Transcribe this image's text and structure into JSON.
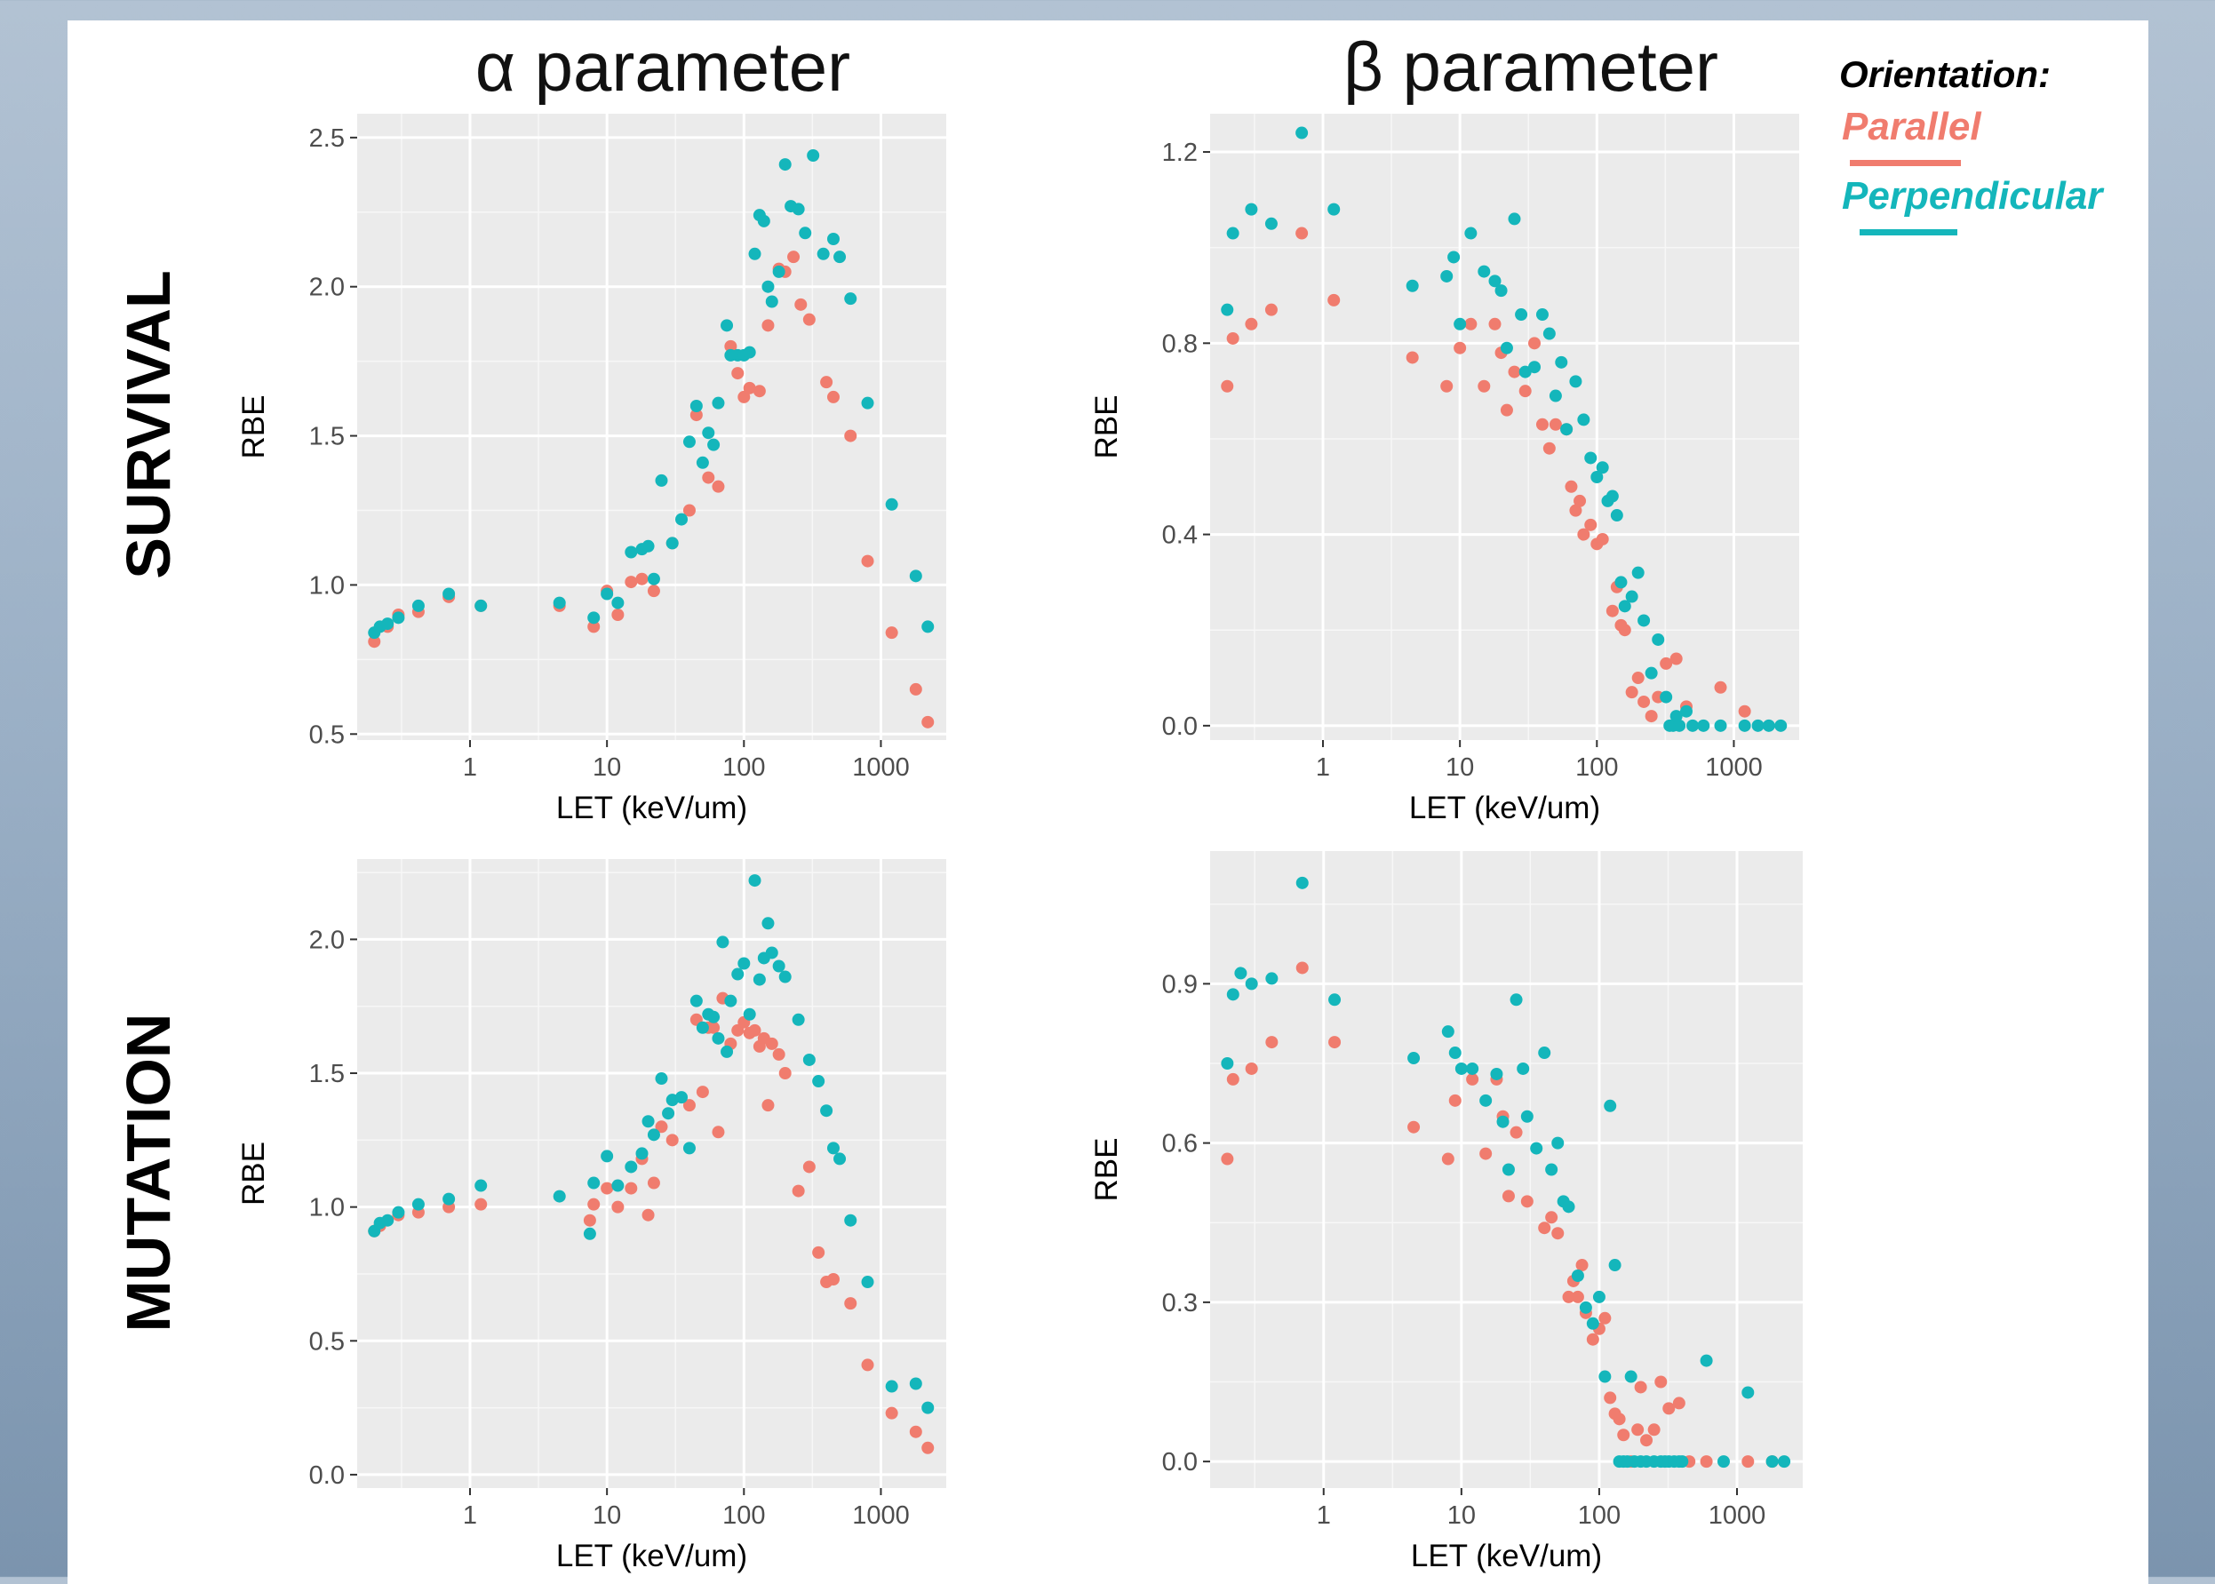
{
  "titles": {
    "alpha": "α parameter",
    "beta": "β parameter"
  },
  "rows": {
    "survival": "SURVIVAL",
    "mutation": "MUTATION"
  },
  "legend": {
    "title": "Orientation:",
    "items": [
      {
        "label": "Parallel",
        "color": "#F07C6E"
      },
      {
        "label": "Perpendicular",
        "color": "#14B6BB"
      }
    ]
  },
  "chart_data": [
    {
      "type": "scatter",
      "row": "SURVIVAL",
      "column": "α parameter",
      "xlabel": "LET (keV/um)",
      "ylabel": "RBE",
      "xscale": "log",
      "xlim": [
        0.15,
        3000
      ],
      "ylim": [
        0.48,
        2.58
      ],
      "xticks": [
        "1",
        "10",
        "100",
        "1000"
      ],
      "yticks": [
        "0.5",
        "1.0",
        "1.5",
        "2.0",
        "2.5"
      ],
      "grid": true,
      "series": [
        {
          "name": "Parallel",
          "x": [
            0.2,
            0.25,
            0.3,
            0.42,
            0.7,
            1.2,
            4.5,
            8,
            10,
            12,
            15,
            18,
            22,
            30,
            40,
            45,
            55,
            65,
            80,
            90,
            100,
            110,
            130,
            150,
            180,
            200,
            230,
            260,
            300,
            400,
            450,
            600,
            800,
            1200,
            1800,
            2200
          ],
          "y": [
            0.81,
            0.86,
            0.9,
            0.91,
            0.96,
            0.93,
            0.93,
            0.86,
            0.98,
            0.9,
            1.01,
            1.02,
            0.98,
            1.14,
            1.25,
            1.57,
            1.36,
            1.33,
            1.8,
            1.71,
            1.63,
            1.66,
            1.65,
            1.87,
            2.06,
            2.05,
            2.1,
            1.94,
            1.89,
            1.68,
            1.63,
            1.5,
            1.08,
            0.84,
            0.65,
            0.54
          ]
        },
        {
          "name": "Perpendicular",
          "x": [
            0.2,
            0.22,
            0.25,
            0.3,
            0.42,
            0.7,
            1.2,
            4.5,
            8,
            10,
            12,
            15,
            18,
            20,
            22,
            25,
            30,
            35,
            40,
            45,
            50,
            55,
            60,
            65,
            75,
            80,
            90,
            100,
            110,
            120,
            130,
            140,
            150,
            160,
            180,
            200,
            220,
            250,
            280,
            320,
            380,
            450,
            500,
            600,
            800,
            1200,
            1800,
            2200
          ],
          "y": [
            0.84,
            0.86,
            0.87,
            0.89,
            0.93,
            0.97,
            0.93,
            0.94,
            0.89,
            0.97,
            0.94,
            1.11,
            1.12,
            1.13,
            1.02,
            1.35,
            1.14,
            1.22,
            1.48,
            1.6,
            1.41,
            1.51,
            1.47,
            1.61,
            1.87,
            1.77,
            1.77,
            1.77,
            1.78,
            2.11,
            2.24,
            2.22,
            2.0,
            1.95,
            2.05,
            2.41,
            2.27,
            2.26,
            2.18,
            2.44,
            2.11,
            2.16,
            2.1,
            1.96,
            1.61,
            1.27,
            1.03,
            0.86
          ]
        }
      ]
    },
    {
      "type": "scatter",
      "row": "SURVIVAL",
      "column": "β parameter",
      "xlabel": "LET (keV/um)",
      "ylabel": "RBE",
      "xscale": "log",
      "xlim": [
        0.15,
        3000
      ],
      "ylim": [
        -0.03,
        1.28
      ],
      "xticks": [
        "1",
        "10",
        "100",
        "1000"
      ],
      "yticks": [
        "0.0",
        "0.4",
        "0.8",
        "1.2"
      ],
      "grid": true,
      "series": [
        {
          "name": "Parallel",
          "x": [
            0.2,
            0.22,
            0.3,
            0.42,
            0.7,
            1.2,
            4.5,
            8,
            10,
            12,
            15,
            18,
            20,
            22,
            25,
            30,
            35,
            40,
            45,
            50,
            60,
            65,
            70,
            75,
            80,
            90,
            100,
            110,
            130,
            140,
            150,
            160,
            180,
            200,
            220,
            250,
            280,
            320,
            380,
            450,
            800,
            1200
          ],
          "y": [
            0.71,
            0.81,
            0.84,
            0.87,
            1.03,
            0.89,
            0.77,
            0.71,
            0.79,
            0.84,
            0.71,
            0.84,
            0.78,
            0.66,
            0.74,
            0.7,
            0.8,
            0.63,
            0.58,
            0.63,
            0.62,
            0.5,
            0.45,
            0.47,
            0.4,
            0.42,
            0.38,
            0.39,
            0.24,
            0.29,
            0.21,
            0.2,
            0.07,
            0.1,
            0.05,
            0.02,
            0.06,
            0.13,
            0.14,
            0.04,
            0.08,
            0.03
          ]
        },
        {
          "name": "Perpendicular",
          "x": [
            0.2,
            0.22,
            0.3,
            0.42,
            0.7,
            1.2,
            4.5,
            8,
            9,
            10,
            12,
            15,
            18,
            20,
            22,
            25,
            28,
            30,
            35,
            40,
            45,
            50,
            55,
            60,
            70,
            80,
            90,
            100,
            110,
            120,
            130,
            140,
            150,
            160,
            180,
            200,
            220,
            250,
            280,
            320,
            340,
            360,
            380,
            400,
            450,
            500,
            600,
            800,
            1200,
            1500,
            1800,
            2200
          ],
          "y": [
            0.87,
            1.03,
            1.08,
            1.05,
            1.24,
            1.08,
            0.92,
            0.94,
            0.98,
            0.84,
            1.03,
            0.95,
            0.93,
            0.91,
            0.79,
            1.06,
            0.86,
            0.74,
            0.75,
            0.86,
            0.82,
            0.69,
            0.76,
            0.62,
            0.72,
            0.64,
            0.56,
            0.52,
            0.54,
            0.47,
            0.48,
            0.44,
            0.3,
            0.25,
            0.27,
            0.32,
            0.22,
            0.11,
            0.18,
            0.06,
            0.0,
            0.0,
            0.02,
            0.0,
            0.03,
            0.0,
            0.0,
            0.0,
            0.0,
            0.0,
            0.0,
            0.0
          ]
        }
      ]
    },
    {
      "type": "scatter",
      "row": "MUTATION",
      "column": "α parameter",
      "xlabel": "LET (keV/um)",
      "ylabel": "RBE",
      "xscale": "log",
      "xlim": [
        0.15,
        3000
      ],
      "ylim": [
        -0.05,
        2.3
      ],
      "xticks": [
        "1",
        "10",
        "100",
        "1000"
      ],
      "yticks": [
        "0.0",
        "0.5",
        "1.0",
        "1.5",
        "2.0"
      ],
      "grid": true,
      "series": [
        {
          "name": "Parallel",
          "x": [
            0.2,
            0.22,
            0.3,
            0.42,
            0.7,
            1.2,
            7.5,
            8,
            10,
            12,
            15,
            18,
            20,
            22,
            25,
            30,
            40,
            45,
            50,
            55,
            60,
            65,
            70,
            80,
            90,
            100,
            110,
            120,
            130,
            140,
            150,
            160,
            180,
            200,
            250,
            300,
            350,
            400,
            450,
            600,
            800,
            1200,
            1800,
            2200
          ],
          "y": [
            0.91,
            0.93,
            0.97,
            0.98,
            1.0,
            1.01,
            0.95,
            1.01,
            1.07,
            1.0,
            1.07,
            1.18,
            0.97,
            1.09,
            1.3,
            1.25,
            1.38,
            1.7,
            1.43,
            1.67,
            1.67,
            1.28,
            1.78,
            1.61,
            1.66,
            1.69,
            1.65,
            1.66,
            1.6,
            1.63,
            1.38,
            1.61,
            1.57,
            1.5,
            1.06,
            1.15,
            0.83,
            0.72,
            0.73,
            0.64,
            0.41,
            0.23,
            0.16,
            0.1
          ]
        },
        {
          "name": "Perpendicular",
          "x": [
            0.2,
            0.22,
            0.25,
            0.3,
            0.42,
            0.7,
            1.2,
            4.5,
            7.5,
            8,
            10,
            12,
            15,
            18,
            20,
            22,
            25,
            28,
            30,
            35,
            40,
            45,
            50,
            55,
            60,
            65,
            70,
            75,
            80,
            90,
            100,
            110,
            120,
            130,
            140,
            150,
            160,
            180,
            200,
            250,
            300,
            350,
            400,
            450,
            500,
            600,
            800,
            1200,
            1800,
            2200
          ],
          "y": [
            0.91,
            0.94,
            0.95,
            0.98,
            1.01,
            1.03,
            1.08,
            1.04,
            0.9,
            1.09,
            1.19,
            1.08,
            1.15,
            1.2,
            1.32,
            1.27,
            1.48,
            1.35,
            1.4,
            1.41,
            1.22,
            1.77,
            1.67,
            1.72,
            1.71,
            1.63,
            1.99,
            1.58,
            1.77,
            1.87,
            1.91,
            1.72,
            2.22,
            1.85,
            1.93,
            2.06,
            1.95,
            1.9,
            1.86,
            1.7,
            1.55,
            1.47,
            1.36,
            1.22,
            1.18,
            0.95,
            0.72,
            0.33,
            0.34,
            0.25
          ]
        }
      ]
    },
    {
      "type": "scatter",
      "row": "MUTATION",
      "column": "β parameter",
      "xlabel": "LET (keV/um)",
      "ylabel": "RBE",
      "xscale": "log",
      "xlim": [
        0.15,
        3000
      ],
      "ylim": [
        -0.05,
        1.15
      ],
      "xticks": [
        "1",
        "10",
        "100",
        "1000"
      ],
      "yticks": [
        "0.0",
        "0.3",
        "0.6",
        "0.9"
      ],
      "grid": true,
      "series": [
        {
          "name": "Parallel",
          "x": [
            0.2,
            0.22,
            0.3,
            0.42,
            0.7,
            1.2,
            4.5,
            8,
            9,
            12,
            15,
            18,
            20,
            22,
            25,
            30,
            40,
            45,
            50,
            60,
            65,
            70,
            75,
            80,
            90,
            100,
            110,
            120,
            130,
            140,
            150,
            170,
            190,
            200,
            220,
            250,
            280,
            320,
            380,
            450,
            600,
            1200,
            1800
          ],
          "y": [
            0.57,
            0.72,
            0.74,
            0.79,
            0.93,
            0.79,
            0.63,
            0.57,
            0.68,
            0.72,
            0.58,
            0.72,
            0.65,
            0.5,
            0.62,
            0.49,
            0.44,
            0.46,
            0.43,
            0.31,
            0.34,
            0.31,
            0.37,
            0.28,
            0.23,
            0.25,
            0.27,
            0.12,
            0.09,
            0.08,
            0.05,
            0.0,
            0.06,
            0.14,
            0.04,
            0.06,
            0.15,
            0.1,
            0.11,
            0.0,
            0.0,
            0.0,
            0.0
          ]
        },
        {
          "name": "Perpendicular",
          "x": [
            0.2,
            0.22,
            0.25,
            0.3,
            0.42,
            0.7,
            1.2,
            4.5,
            8,
            9,
            10,
            12,
            15,
            18,
            20,
            22,
            25,
            28,
            30,
            35,
            40,
            45,
            50,
            55,
            60,
            70,
            80,
            90,
            100,
            110,
            120,
            130,
            140,
            150,
            160,
            170,
            180,
            200,
            220,
            250,
            280,
            300,
            320,
            350,
            380,
            400,
            600,
            800,
            1200,
            1800,
            2200
          ],
          "y": [
            0.75,
            0.88,
            0.92,
            0.9,
            0.91,
            1.09,
            0.87,
            0.76,
            0.81,
            0.77,
            0.74,
            0.74,
            0.68,
            0.73,
            0.64,
            0.55,
            0.87,
            0.74,
            0.65,
            0.59,
            0.77,
            0.55,
            0.6,
            0.49,
            0.48,
            0.35,
            0.29,
            0.26,
            0.31,
            0.16,
            0.67,
            0.37,
            0.0,
            0.0,
            0.0,
            0.16,
            0.0,
            0.0,
            0.0,
            0.0,
            0.0,
            0.0,
            0.0,
            0.0,
            0.0,
            0.0,
            0.19,
            0.0,
            0.13,
            0.0,
            0.0
          ]
        }
      ]
    }
  ]
}
